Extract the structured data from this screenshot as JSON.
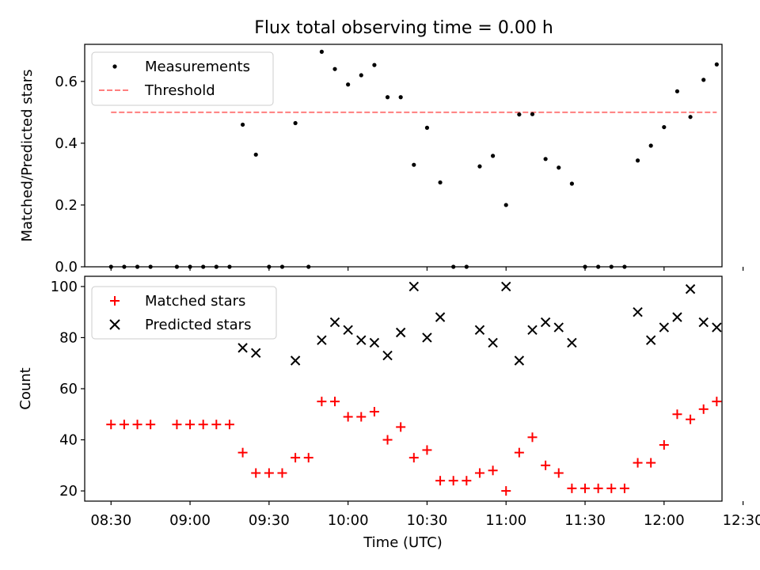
{
  "chart_data": [
    {
      "type": "scatter",
      "title": "Flux total observing time = 0.00 h",
      "ylabel": "Matched/Predicted stars",
      "ylim": [
        0,
        0.72
      ],
      "yticks": [
        0.0,
        0.2,
        0.4,
        0.6
      ],
      "ytick_labels": [
        "0.0",
        "0.2",
        "0.4",
        "0.6"
      ],
      "legend_position": "top-left",
      "x_unit": "minutes of day (UTC)",
      "series": [
        {
          "name": "Measurements",
          "style": "dot",
          "color": "#000000",
          "points": [
            [
              510,
              0.0
            ],
            [
              515,
              0.0
            ],
            [
              520,
              0.0
            ],
            [
              525,
              0.0
            ],
            [
              535,
              0.0
            ],
            [
              540,
              0.0
            ],
            [
              545,
              0.0
            ],
            [
              550,
              0.0
            ],
            [
              555,
              0.0
            ],
            [
              560,
              0.46
            ],
            [
              565,
              0.363
            ],
            [
              570,
              0.0
            ],
            [
              575,
              0.0
            ],
            [
              580,
              0.465
            ],
            [
              585,
              0.0
            ],
            [
              590,
              0.696
            ],
            [
              595,
              0.64
            ],
            [
              600,
              0.59
            ],
            [
              605,
              0.62
            ],
            [
              610,
              0.653
            ],
            [
              615,
              0.549
            ],
            [
              620,
              0.549
            ],
            [
              625,
              0.33
            ],
            [
              630,
              0.45
            ],
            [
              635,
              0.273
            ],
            [
              640,
              0.0
            ],
            [
              645,
              0.0
            ],
            [
              650,
              0.325
            ],
            [
              655,
              0.359
            ],
            [
              660,
              0.2
            ],
            [
              665,
              0.493
            ],
            [
              670,
              0.494
            ],
            [
              675,
              0.349
            ],
            [
              680,
              0.321
            ],
            [
              685,
              0.269
            ],
            [
              690,
              0.0
            ],
            [
              695,
              0.0
            ],
            [
              700,
              0.0
            ],
            [
              705,
              0.0
            ],
            [
              710,
              0.344
            ],
            [
              715,
              0.392
            ],
            [
              720,
              0.452
            ],
            [
              725,
              0.568
            ],
            [
              730,
              0.485
            ],
            [
              735,
              0.605
            ],
            [
              740,
              0.655
            ]
          ]
        },
        {
          "name": "Threshold",
          "style": "dashed-line",
          "color": "#ff7f7f",
          "points": [
            [
              510,
              0.5
            ],
            [
              740,
              0.5
            ]
          ]
        }
      ]
    },
    {
      "type": "scatter",
      "xlabel": "Time (UTC)",
      "ylabel": "Count",
      "ylim": [
        16,
        104
      ],
      "xlim": [
        500,
        742
      ],
      "yticks": [
        20,
        40,
        60,
        80,
        100
      ],
      "ytick_labels": [
        "20",
        "40",
        "60",
        "80",
        "100"
      ],
      "xticks": [
        510,
        540,
        570,
        600,
        630,
        660,
        690,
        720,
        750
      ],
      "xtick_labels": [
        "08:30",
        "09:00",
        "09:30",
        "10:00",
        "10:30",
        "11:00",
        "11:30",
        "12:00",
        "12:30"
      ],
      "legend_position": "top-left",
      "series": [
        {
          "name": "Matched stars",
          "marker": "plus",
          "color": "#ff0000",
          "points": [
            [
              510,
              46
            ],
            [
              515,
              46
            ],
            [
              520,
              46
            ],
            [
              525,
              46
            ],
            [
              535,
              46
            ],
            [
              540,
              46
            ],
            [
              545,
              46
            ],
            [
              550,
              46
            ],
            [
              555,
              46
            ],
            [
              560,
              35
            ],
            [
              565,
              27
            ],
            [
              570,
              27
            ],
            [
              575,
              27
            ],
            [
              580,
              33
            ],
            [
              585,
              33
            ],
            [
              590,
              55
            ],
            [
              595,
              55
            ],
            [
              600,
              49
            ],
            [
              605,
              49
            ],
            [
              610,
              51
            ],
            [
              615,
              40
            ],
            [
              620,
              45
            ],
            [
              625,
              33
            ],
            [
              630,
              36
            ],
            [
              635,
              24
            ],
            [
              640,
              24
            ],
            [
              645,
              24
            ],
            [
              650,
              27
            ],
            [
              655,
              28
            ],
            [
              660,
              20
            ],
            [
              665,
              35
            ],
            [
              670,
              41
            ],
            [
              675,
              30
            ],
            [
              680,
              27
            ],
            [
              685,
              21
            ],
            [
              690,
              21
            ],
            [
              695,
              21
            ],
            [
              700,
              21
            ],
            [
              705,
              21
            ],
            [
              710,
              31
            ],
            [
              715,
              31
            ],
            [
              720,
              38
            ],
            [
              725,
              50
            ],
            [
              730,
              48
            ],
            [
              735,
              52
            ],
            [
              740,
              55
            ]
          ]
        },
        {
          "name": "Predicted stars",
          "marker": "x",
          "color": "#000000",
          "points": [
            [
              560,
              76
            ],
            [
              565,
              74
            ],
            [
              580,
              71
            ],
            [
              590,
              79
            ],
            [
              595,
              86
            ],
            [
              600,
              83
            ],
            [
              605,
              79
            ],
            [
              610,
              78
            ],
            [
              615,
              73
            ],
            [
              620,
              82
            ],
            [
              625,
              100
            ],
            [
              630,
              80
            ],
            [
              635,
              88
            ],
            [
              650,
              83
            ],
            [
              655,
              78
            ],
            [
              660,
              100
            ],
            [
              665,
              71
            ],
            [
              670,
              83
            ],
            [
              675,
              86
            ],
            [
              680,
              84
            ],
            [
              685,
              78
            ],
            [
              710,
              90
            ],
            [
              715,
              79
            ],
            [
              720,
              84
            ],
            [
              725,
              88
            ],
            [
              730,
              99
            ],
            [
              735,
              86
            ],
            [
              740,
              84
            ]
          ]
        }
      ]
    }
  ]
}
